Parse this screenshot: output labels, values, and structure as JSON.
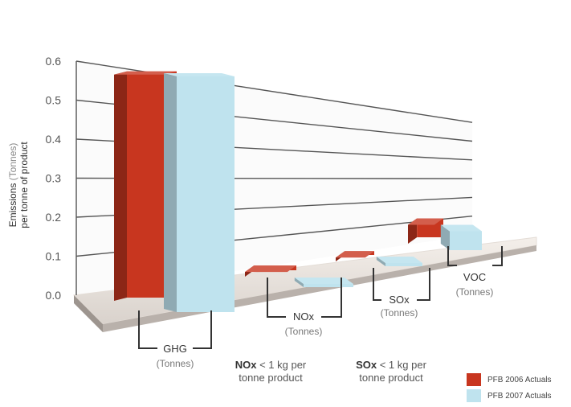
{
  "chart_data": {
    "type": "bar",
    "title": "",
    "xlabel": "",
    "ylabel_main": "Emissions",
    "ylabel_unit": "(Tonnes)",
    "ylabel_sub": "per tonne of product",
    "ylim": [
      0,
      0.6
    ],
    "yticks": [
      "0.0",
      "0.1",
      "0.2",
      "0.3",
      "0.4",
      "0.5",
      "0.6"
    ],
    "categories": [
      {
        "name": "GHG",
        "unit": "(Tonnes)"
      },
      {
        "name": "NOx",
        "unit": "(Tonnes)"
      },
      {
        "name": "SOx",
        "unit": "(Tonnes)"
      },
      {
        "name": "VOC",
        "unit": "(Tonnes)"
      }
    ],
    "series": [
      {
        "name": "PFB 2006 Actuals",
        "color": "#c8361f",
        "values": [
          0.48,
          0.01,
          0.008,
          0.04
        ]
      },
      {
        "name": "PFB 2007 Actuals",
        "color": "#bfe3ee",
        "values": [
          0.5,
          0.004,
          0.002,
          0.04
        ]
      }
    ],
    "legend_position": "bottom-right",
    "grid": true
  },
  "notes": [
    {
      "bold": "NOx",
      "rest": " < 1 kg per",
      "line2": "tonne product"
    },
    {
      "bold": "SOx",
      "rest": " < 1 kg per",
      "line2": "tonne product"
    }
  ]
}
